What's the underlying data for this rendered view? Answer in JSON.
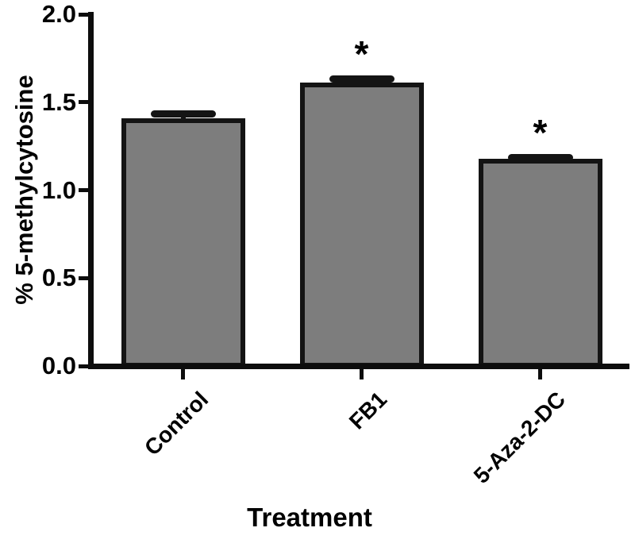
{
  "figure": {
    "background": "#ffffff"
  },
  "chart_data": {
    "type": "bar",
    "title": "",
    "xlabel": "Treatment",
    "ylabel": "% 5-methylcytosine",
    "categories": [
      "Control",
      "FB1",
      "5-Aza-2-DC"
    ],
    "values": [
      1.41,
      1.61,
      1.18
    ],
    "errors": [
      0.04,
      0.04,
      0.02
    ],
    "significance": [
      "",
      "*",
      "*"
    ],
    "ylim": [
      0,
      2
    ],
    "yticks": [
      "0.0",
      "0.5",
      "1.0",
      "1.5",
      "2.0"
    ],
    "grid": false,
    "legend": "none",
    "bar_color": "#7d7d7d",
    "bar_edge_color": "#141414",
    "error_bar_color": "#141414",
    "axis_color": "#0d0d0d",
    "text_color": "#000000"
  }
}
